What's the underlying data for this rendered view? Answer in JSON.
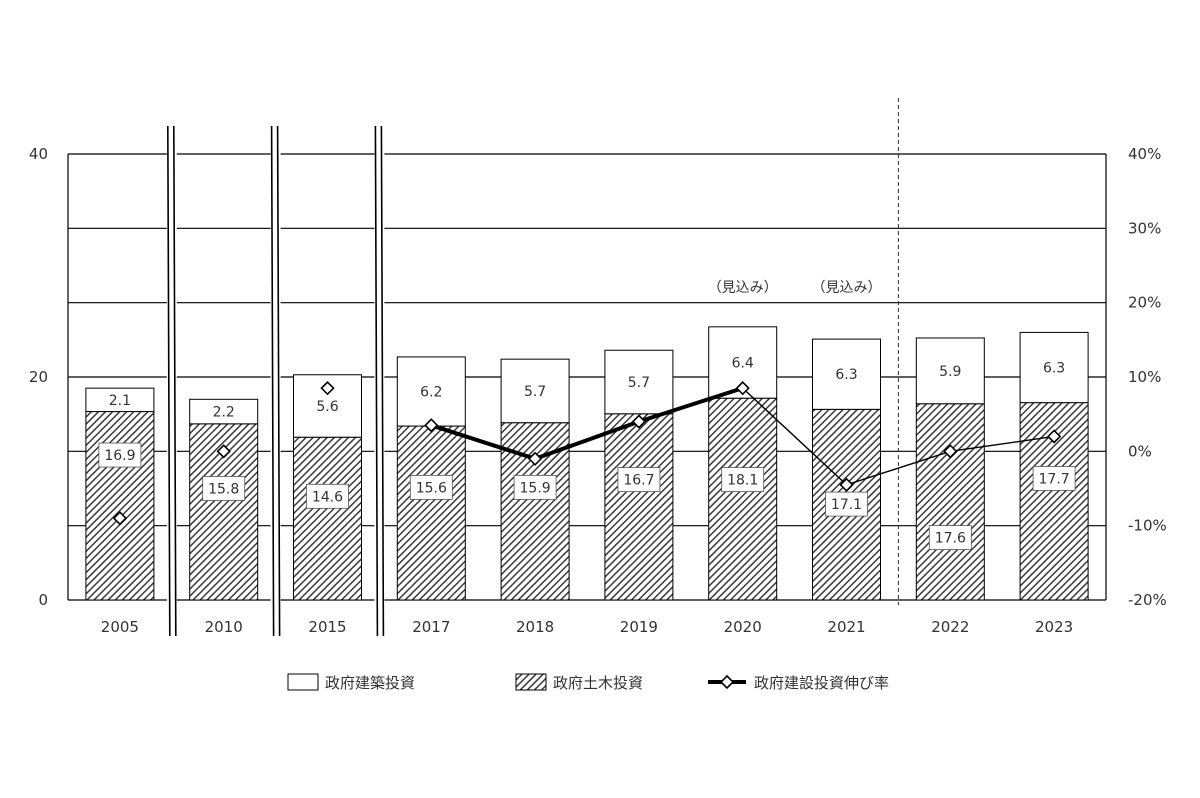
{
  "chart_data": {
    "type": "bar",
    "stacked": true,
    "categories": [
      "2005",
      "2010",
      "2015",
      "2017",
      "2018",
      "2019",
      "2020",
      "2021",
      "2022",
      "2023"
    ],
    "series": [
      {
        "name": "政府土木投資",
        "axis": "left",
        "pattern": "diagonal-hatch",
        "values": [
          16.9,
          15.8,
          14.6,
          15.6,
          15.9,
          16.7,
          18.1,
          17.1,
          17.6,
          17.7
        ],
        "labels": [
          "16.9",
          "15.8",
          "14.6",
          "15.6",
          "15.9",
          "16.7",
          "18.1",
          "17.1",
          "17.6",
          "17.7"
        ]
      },
      {
        "name": "政府建築投資",
        "axis": "left",
        "pattern": "white",
        "values": [
          2.1,
          2.2,
          5.6,
          6.2,
          5.7,
          5.7,
          6.4,
          6.3,
          5.9,
          6.3
        ],
        "labels": [
          "2.1",
          "2.2",
          "5.6",
          "6.2",
          "5.7",
          "5.7",
          "6.4",
          "6.3",
          "5.9",
          "6.3"
        ]
      },
      {
        "name": "政府建設投資伸び率",
        "type": "line",
        "axis": "right",
        "marker": "diamond",
        "values": [
          -9,
          0,
          8.5,
          3.5,
          -1,
          4,
          8.5,
          -4.5,
          0,
          2
        ]
      }
    ],
    "left_axis": {
      "ylim": [
        0,
        40
      ],
      "ticks": [
        "0",
        "20",
        "40"
      ]
    },
    "right_axis": {
      "ylim": [
        -20,
        40
      ],
      "ticks": [
        "-20%",
        "-10%",
        "0%",
        "10%",
        "20%",
        "30%",
        "40%"
      ]
    },
    "annotations": [
      "（見込み）",
      "（見込み）"
    ],
    "grid": true,
    "legend_position": "bottom",
    "axis_breaks_after": [
      "2005",
      "2010",
      "2015"
    ],
    "forecast_divider_before": "2022"
  }
}
